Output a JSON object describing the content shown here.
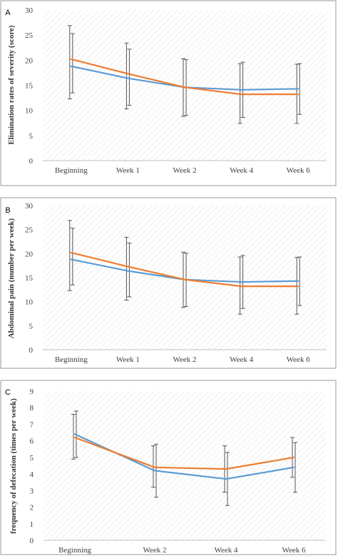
{
  "colors": {
    "series_blue": "#5b9bd5",
    "series_orange": "#ed7d31",
    "error_bar": "#555555",
    "frame": "#9a9a9a"
  },
  "chart_data": [
    {
      "type": "line",
      "panel_label": "A",
      "ylabel": "Elimination rates of severity (score)",
      "xlabel": "",
      "categories": [
        "Beginning",
        "Week 1",
        "Week 2",
        "Week 4",
        "Week 6"
      ],
      "ylim": [
        0,
        30
      ],
      "yticks": [
        0,
        5,
        10,
        15,
        20,
        25,
        30
      ],
      "series": [
        {
          "color": "#5b9bd5",
          "values": [
            18.8,
            16.4,
            14.6,
            14.1,
            14.3
          ],
          "err_low": [
            13.5,
            11.0,
            9.0,
            8.6,
            9.2
          ],
          "err_high": [
            25.3,
            22.2,
            20.1,
            19.6,
            19.3
          ]
        },
        {
          "color": "#ed7d31",
          "values": [
            20.2,
            17.3,
            14.6,
            13.2,
            13.2
          ],
          "err_low": [
            12.3,
            10.3,
            8.8,
            7.4,
            7.4
          ],
          "err_high": [
            26.9,
            23.4,
            20.3,
            19.3,
            19.2
          ]
        }
      ]
    },
    {
      "type": "line",
      "panel_label": "B",
      "ylabel": "Abdominal pain (number per week)",
      "xlabel": "",
      "categories": [
        "Beginning",
        "Week 1",
        "Week 2",
        "Week 4",
        "Week 6"
      ],
      "ylim": [
        0,
        30
      ],
      "yticks": [
        0,
        5,
        10,
        15,
        20,
        25,
        30
      ],
      "series": [
        {
          "color": "#5b9bd5",
          "values": [
            18.8,
            16.4,
            14.6,
            14.1,
            14.3
          ],
          "err_low": [
            13.5,
            11.0,
            9.0,
            8.6,
            9.2
          ],
          "err_high": [
            25.3,
            22.2,
            20.1,
            19.6,
            19.3
          ]
        },
        {
          "color": "#ed7d31",
          "values": [
            20.2,
            17.3,
            14.6,
            13.2,
            13.2
          ],
          "err_low": [
            12.3,
            10.3,
            8.8,
            7.4,
            7.4
          ],
          "err_high": [
            26.9,
            23.4,
            20.3,
            19.3,
            19.2
          ]
        }
      ]
    },
    {
      "type": "line",
      "panel_label": "C",
      "ylabel": "frequency of defecation (times per week)",
      "xlabel": "",
      "categories": [
        "Beginning",
        "Week 2",
        "Week 4",
        "Week 6"
      ],
      "ylim": [
        0,
        9
      ],
      "yticks": [
        0,
        1,
        2,
        3,
        4,
        5,
        6,
        7,
        8,
        9
      ],
      "series": [
        {
          "color": "#5b9bd5",
          "values": [
            6.4,
            4.2,
            3.7,
            4.4
          ],
          "err_low": [
            5.0,
            2.6,
            2.1,
            2.9
          ],
          "err_high": [
            7.8,
            5.8,
            5.3,
            5.9
          ]
        },
        {
          "color": "#ed7d31",
          "values": [
            6.2,
            4.4,
            4.3,
            5.0
          ],
          "err_low": [
            4.9,
            3.2,
            2.9,
            3.8
          ],
          "err_high": [
            7.6,
            5.7,
            5.7,
            6.2
          ]
        }
      ]
    }
  ]
}
